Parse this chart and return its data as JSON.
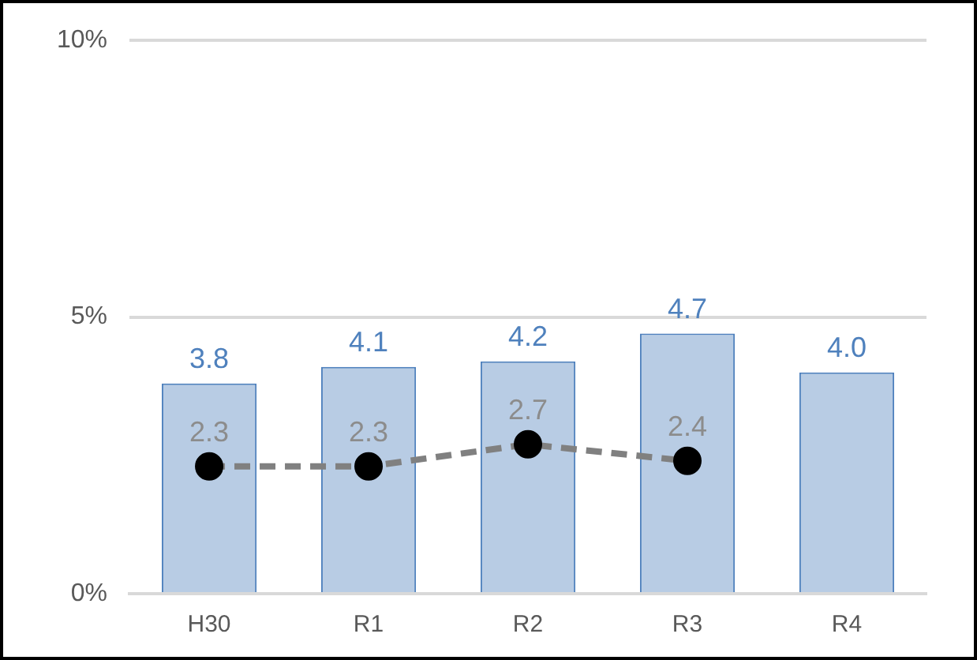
{
  "chart_data": {
    "type": "bar",
    "categories": [
      "H30",
      "R1",
      "R2",
      "R3",
      "R4"
    ],
    "series": [
      {
        "color": "#b8cce4",
        "values": [
          3.8,
          4.1,
          4.2,
          4.7,
          4.0
        ],
        "value_labels": [
          "3.8",
          "4.1",
          "4.2",
          "4.7",
          "4.0"
        ]
      },
      {
        "type": "line",
        "color": "#808080",
        "values": [
          2.3,
          2.3,
          2.7,
          2.4,
          null
        ],
        "value_labels": [
          "2.3",
          "2.3",
          "2.7",
          "2.4",
          null
        ],
        "marker": "circle",
        "line_style": "dashed"
      }
    ],
    "ylim": [
      0,
      10
    ],
    "yticks": [
      {
        "value": 0,
        "label": "0%"
      },
      {
        "value": 5,
        "label": "5%"
      },
      {
        "value": 10,
        "label": "10%"
      }
    ],
    "grid": "y",
    "legend": false
  }
}
